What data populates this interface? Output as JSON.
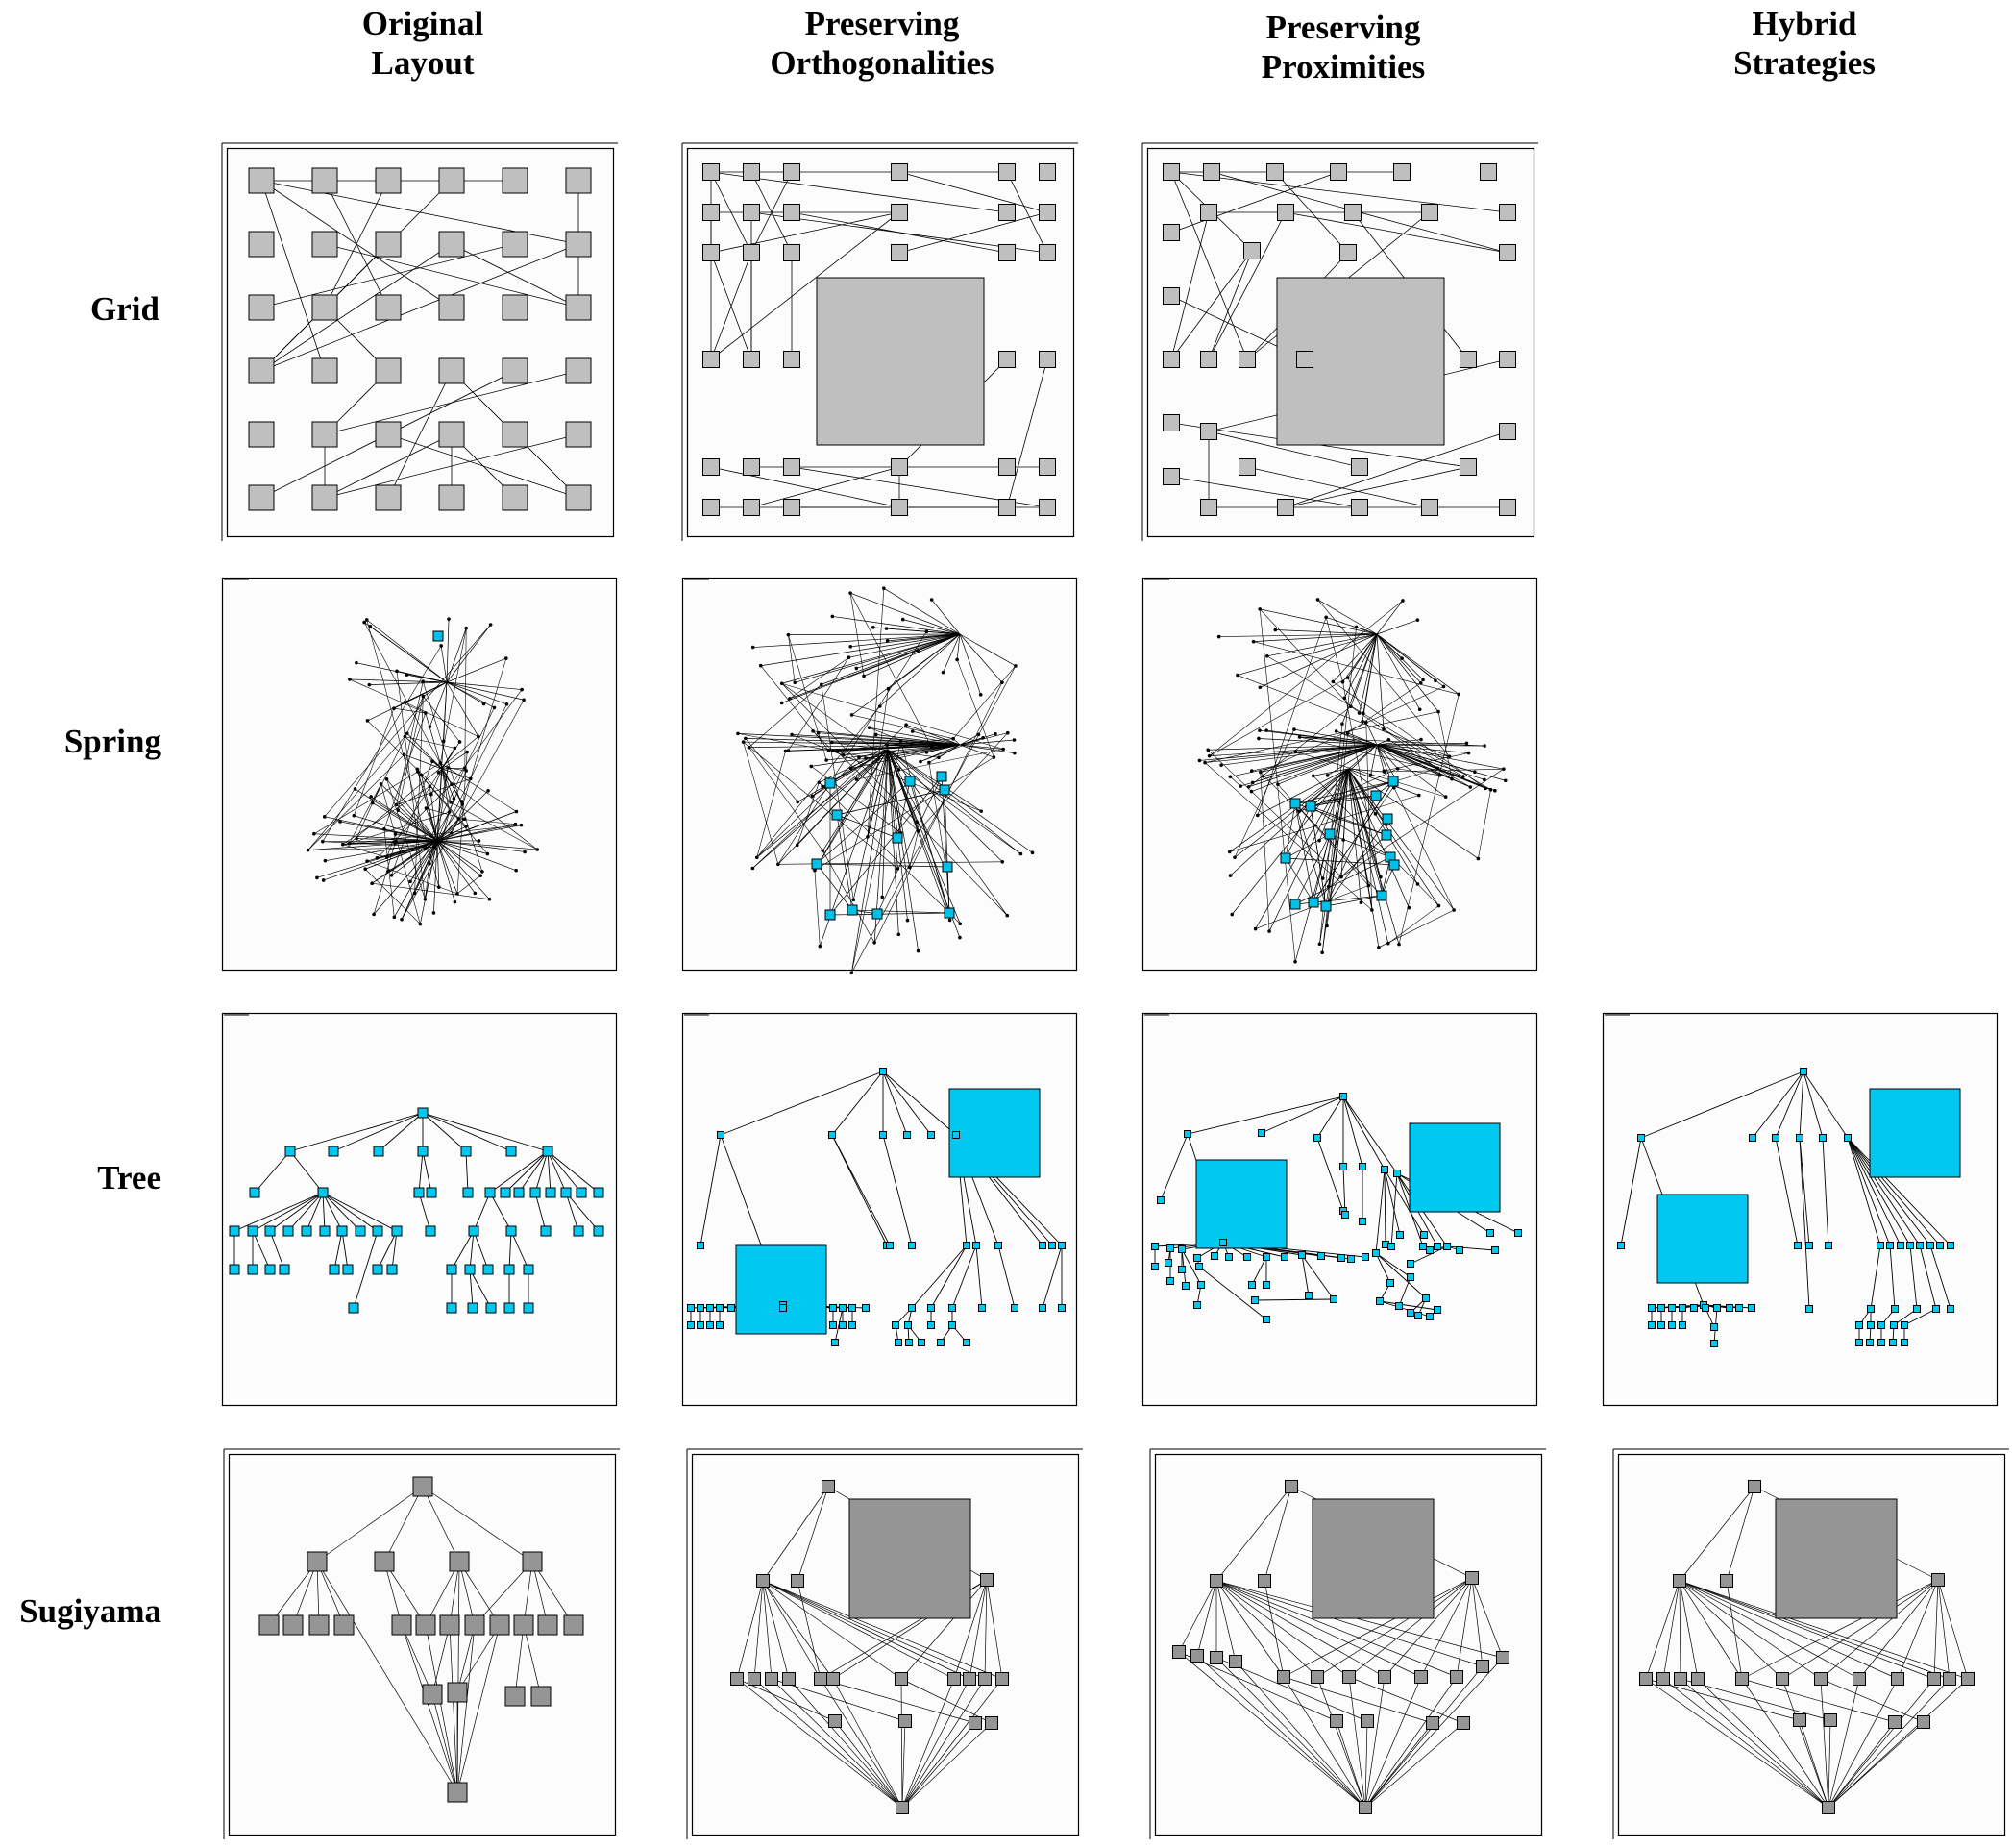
{
  "columns": [
    {
      "line1": "Original",
      "line2": "Layout"
    },
    {
      "line1": "Preserving",
      "line2": "Orthogonalities"
    },
    {
      "line1": "Preserving",
      "line2": "Proximities"
    },
    {
      "line1": "Hybrid",
      "line2": "Strategies"
    }
  ],
  "rows": [
    "Grid",
    "Spring",
    "Tree",
    "Sugiyama"
  ],
  "colors": {
    "grid_node": "#bfbfbf",
    "spring_node": "#000000",
    "spring_highlight": "#00c0e8",
    "tree_node": "#00c8f0",
    "sugiyama_node": "#959595",
    "edge": "#000000"
  }
}
